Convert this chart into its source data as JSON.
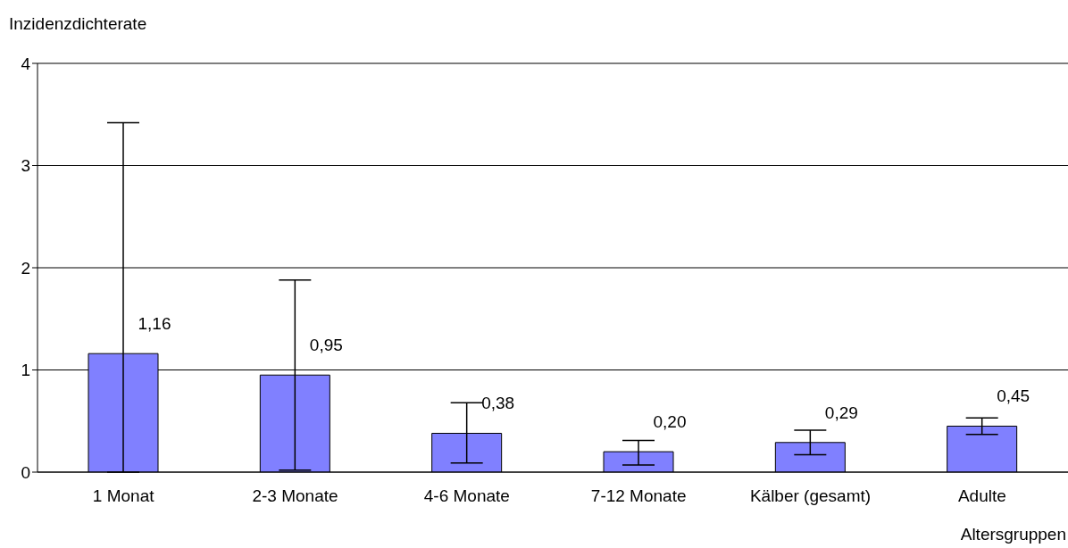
{
  "chart_data": {
    "type": "bar",
    "ylabel": "Inzidenzdichterate",
    "xlabel": "Altersgruppen",
    "categories": [
      "1 Monat",
      "2-3 Monate",
      "4-6 Monate",
      "7-12 Monate",
      "Kälber (gesamt)",
      "Adulte"
    ],
    "values": [
      1.16,
      0.95,
      0.38,
      0.2,
      0.29,
      0.45
    ],
    "value_labels": [
      "1,16",
      "0,95",
      "0,38",
      "0,20",
      "0,29",
      "0,45"
    ],
    "errors": [
      [
        0,
        3.42
      ],
      [
        0.02,
        1.88
      ],
      [
        0.09,
        0.68
      ],
      [
        0.07,
        0.31
      ],
      [
        0.17,
        0.41
      ],
      [
        0.37,
        0.53
      ]
    ],
    "color": "#8080ff",
    "ylim": [
      0,
      4
    ],
    "yticks": [
      0,
      1,
      2,
      3,
      4
    ],
    "grid": "y"
  }
}
